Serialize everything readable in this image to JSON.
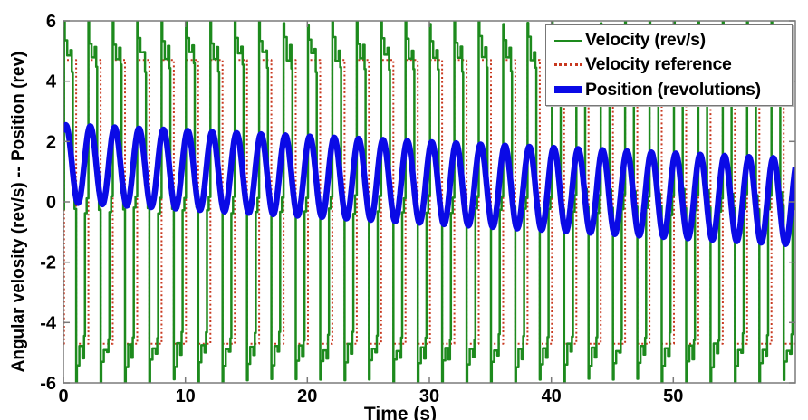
{
  "figure": {
    "background": "#ffffff"
  },
  "chart_data": {
    "type": "line",
    "title": "",
    "xlabel": "Time (s)",
    "ylabel": "Angular velosity (rev/s) -- Position (rev)",
    "xlim": [
      0,
      60
    ],
    "ylim": [
      -6,
      6
    ],
    "xticks": [
      0,
      10,
      20,
      30,
      40,
      50
    ],
    "yticks": [
      6,
      4,
      2,
      0,
      -2,
      -4,
      -6
    ],
    "grid": false,
    "axis_color": "#7a7a7a",
    "tick_label_color": "#000000",
    "legend": {
      "position": "top-right",
      "border_color": "#777777",
      "background": "#ffffff"
    },
    "series": [
      {
        "name": "Velocity (rev/s)",
        "color": "#1d8a1d",
        "style": "solid",
        "width": 2.5,
        "type": "pwm_response",
        "params": {
          "period": 2,
          "phase": 0.05,
          "half_segments": [
            [
              0.0,
              0.06,
              "overshoot"
            ],
            [
              0.06,
              0.26,
              5.35
            ],
            [
              0.26,
              0.52,
              4.82
            ],
            [
              0.52,
              0.64,
              5.1
            ],
            [
              0.64,
              0.72,
              4.45
            ],
            [
              0.72,
              0.86,
              "dwell_hi"
            ],
            [
              0.86,
              1.0,
              "dwell_lo"
            ]
          ],
          "overshoot_base": 5.85,
          "overshoot_var": 0.35,
          "dwell_hi": 0.3,
          "dwell_lo": -0.18,
          "jitter": 0.15,
          "start_value": -0.25
        }
      },
      {
        "name": "Velocity reference",
        "color": "#c8381f",
        "style": "dotted",
        "width": 2,
        "type": "square",
        "params": {
          "period": 2,
          "phase": 0.05,
          "high": 4.7,
          "low": -4.7
        }
      },
      {
        "name": "Position (revolutions)",
        "color": "#0a0ae6",
        "style": "solid",
        "width": 6.5,
        "type": "sine_drift",
        "params": {
          "period": 2,
          "phase_rad": 0.94,
          "mean_start": 1.27,
          "mean_end": 0.0,
          "amp_start": 1.28,
          "amp_end": 1.42,
          "sample_step": 0.04
        }
      }
    ]
  }
}
